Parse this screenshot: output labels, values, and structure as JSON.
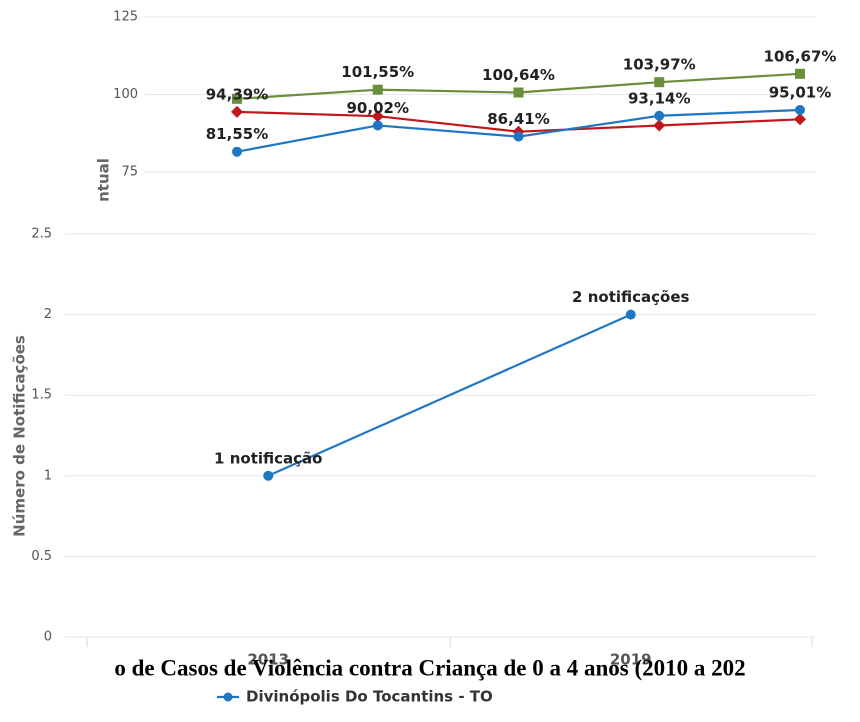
{
  "chart_data": [
    {
      "type": "line",
      "y_label": "ntual",
      "categories": [
        null,
        null,
        null,
        null,
        null
      ],
      "ylim": [
        75,
        125
      ],
      "yticks": [
        75,
        100,
        125
      ],
      "grid": true,
      "series": [
        {
          "color": "#6b8e3a",
          "marker": "square",
          "values": [
            98.6,
            101.55,
            100.64,
            103.97,
            106.67
          ],
          "value_labels": [
            null,
            "101,55%",
            "100,64%",
            "103,97%",
            "106,67%"
          ]
        },
        {
          "color": "#c0171c",
          "marker": "diamond",
          "values": [
            94.39,
            93,
            88,
            90,
            92
          ],
          "value_labels": [
            "94,39%",
            null,
            null,
            null,
            null
          ]
        },
        {
          "color": "#1f77c4",
          "marker": "circle",
          "values": [
            81.55,
            90.02,
            86.41,
            93.14,
            95.01
          ],
          "value_labels": [
            "81,55%",
            "90,02%",
            "86,41%",
            "93,14%",
            "95,01%"
          ]
        }
      ]
    },
    {
      "type": "line",
      "title": "o de Casos de Violência contra Criança de 0 a 4 anos (2010 a 202",
      "y_label": "Número de Notificações",
      "categories": [
        "2013",
        "2019"
      ],
      "ylim": [
        0,
        2.5
      ],
      "yticks": [
        0,
        0.5,
        1,
        1.5,
        2,
        2.5
      ],
      "grid": true,
      "series": [
        {
          "name": "Divinópolis Do Tocantins - TO",
          "color": "#1f77c4",
          "marker": "circle",
          "values": [
            1,
            2
          ],
          "value_labels": [
            "1 notificação",
            "2 notificações"
          ]
        }
      ]
    }
  ]
}
